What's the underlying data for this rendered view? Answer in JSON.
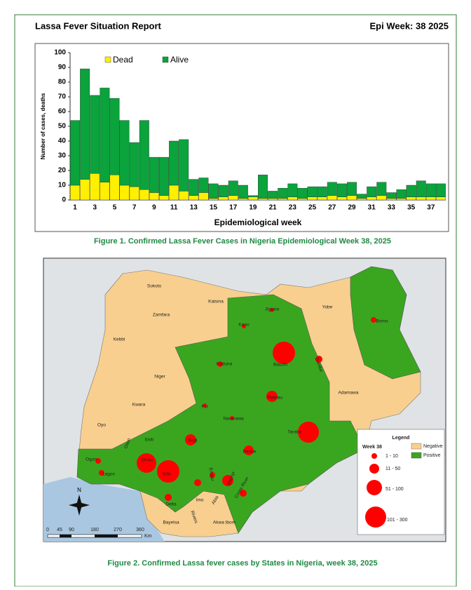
{
  "header": {
    "title": "Lassa Fever Situation Report",
    "epi_week": "Epi Week: 38 2025"
  },
  "chart_data": {
    "type": "bar",
    "stacked": true,
    "ylabel": "Number of cases, deaths",
    "xlabel": "Epidemiological week",
    "categories": [
      1,
      null,
      3,
      null,
      5,
      null,
      7,
      null,
      9,
      null,
      11,
      null,
      13,
      null,
      15,
      null,
      17,
      null,
      19,
      null,
      21,
      null,
      23,
      null,
      25,
      null,
      27,
      null,
      29,
      null,
      31,
      null,
      33,
      null,
      35,
      null,
      37,
      null
    ],
    "series": [
      {
        "name": "Dead",
        "color": "#ffef00",
        "values": [
          10,
          14,
          18,
          12,
          17,
          10,
          9,
          7,
          5,
          3,
          10,
          6,
          3,
          5,
          1,
          2,
          3,
          1,
          2,
          1,
          1,
          1,
          2,
          1,
          2,
          2,
          3,
          2,
          3,
          1,
          2,
          3,
          1,
          1,
          2,
          2,
          2,
          2
        ]
      },
      {
        "name": "Alive",
        "color": "#0aa33c",
        "values": [
          44,
          75,
          53,
          64,
          52,
          44,
          30,
          47,
          24,
          26,
          30,
          35,
          11,
          10,
          10,
          8,
          10,
          9,
          1,
          16,
          5,
          7,
          9,
          7,
          7,
          7,
          9,
          9,
          9,
          3,
          7,
          9,
          4,
          6,
          8,
          11,
          9,
          9
        ]
      }
    ],
    "ylim": [
      0,
      100
    ],
    "yticks": [
      0,
      10,
      20,
      30,
      40,
      50,
      60,
      70,
      80,
      90,
      100
    ],
    "legend": "top-left"
  },
  "figure1_caption": "Figure 1. Confirmed Lassa Fever Cases in Nigeria Epidemiological Week 38, 2025",
  "map": {
    "states": [
      "Sokoto",
      "Zamfara",
      "Katsina",
      "Jigawa",
      "Yobe",
      "Borno",
      "Kebbi",
      "Kano",
      "Bauchi",
      "Gombe",
      "Kaduna",
      "Niger",
      "Plateau",
      "Adamawa",
      "Kwara",
      "Fct",
      "Nasarawa",
      "Oyo",
      "Osun",
      "Ekiti",
      "Kogi",
      "Taraba",
      "Benue",
      "Ogun",
      "Ondo",
      "Lagos",
      "Edo",
      "Enugu",
      "Ebonyi",
      "Imo",
      "Abia",
      "Cross River",
      "Delta",
      "Rivers",
      "Akwa Ibom",
      "Bayelsa"
    ],
    "legend": {
      "title": "Legend",
      "subtitle": "Week 38",
      "negative": "Negative",
      "positive": "Positive",
      "sizes": [
        "1 - 10",
        "11 - 50",
        "51 - 100",
        "101 - 300"
      ]
    },
    "scale": [
      "0",
      "45",
      "90",
      "180",
      "270",
      "360",
      "Km"
    ],
    "north": "N"
  },
  "figure2_caption": "Figure 2. Confirmed Lassa fever cases by States in Nigeria, week 38, 2025"
}
